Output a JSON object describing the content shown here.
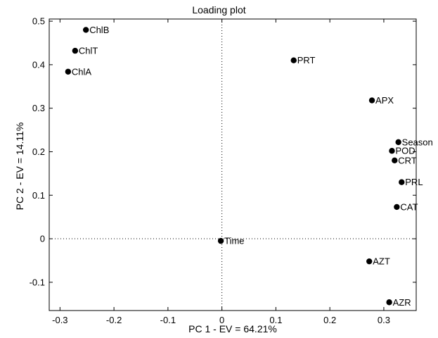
{
  "chart_data": {
    "type": "scatter",
    "title": "Loading plot",
    "xlabel": "PC 1 - EV = 64.21%",
    "ylabel": "PC 2 - EV = 14.11%",
    "xlim": [
      -0.32,
      0.36
    ],
    "ylim": [
      -0.165,
      0.505
    ],
    "xticks": [
      -0.3,
      -0.2,
      -0.1,
      0,
      0.1,
      0.2,
      0.3
    ],
    "xtick_labels": [
      "-0.3",
      "-0.2",
      "-0.1",
      "0",
      "0.1",
      "0.2",
      "0.3"
    ],
    "yticks": [
      -0.1,
      0,
      0.1,
      0.2,
      0.3,
      0.4,
      0.5
    ],
    "ytick_labels": [
      "-0.1",
      "0",
      "0.1",
      "0.2",
      "0.3",
      "0.4",
      "0.5"
    ],
    "grid": false,
    "reference_lines": {
      "x": 0,
      "y": 0,
      "style": "dotted"
    },
    "marker_color": "#000000",
    "points": [
      {
        "label": "ChlB",
        "x": -0.252,
        "y": 0.48
      },
      {
        "label": "ChlT",
        "x": -0.272,
        "y": 0.432
      },
      {
        "label": "ChlA",
        "x": -0.285,
        "y": 0.384
      },
      {
        "label": "PRT",
        "x": 0.133,
        "y": 0.41
      },
      {
        "label": "APX",
        "x": 0.278,
        "y": 0.318
      },
      {
        "label": "Season",
        "x": 0.327,
        "y": 0.222
      },
      {
        "label": "POD",
        "x": 0.315,
        "y": 0.202
      },
      {
        "label": "CRT",
        "x": 0.32,
        "y": 0.18
      },
      {
        "label": "PRL",
        "x": 0.333,
        "y": 0.13
      },
      {
        "label": "CAT",
        "x": 0.324,
        "y": 0.073
      },
      {
        "label": "Time",
        "x": -0.002,
        "y": -0.005
      },
      {
        "label": "AZT",
        "x": 0.273,
        "y": -0.052
      },
      {
        "label": "AZR",
        "x": 0.31,
        "y": -0.146
      }
    ]
  }
}
